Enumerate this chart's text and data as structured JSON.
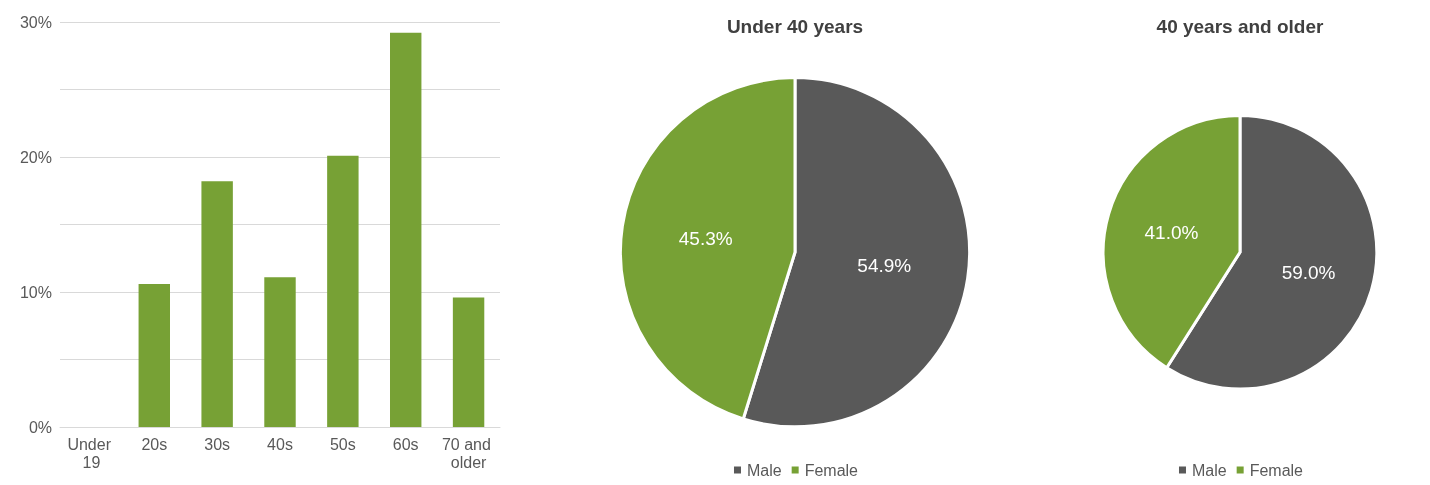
{
  "chart_data": [
    {
      "type": "bar",
      "categories": [
        "Under 19",
        "20s",
        "30s",
        "40s",
        "50s",
        "60s",
        "70 and older"
      ],
      "values": [
        0,
        10.6,
        18.2,
        11.1,
        20.1,
        29.2,
        9.6
      ],
      "color": "#77a135",
      "ylim": [
        0,
        30
      ],
      "yticks": [
        {
          "value": 0,
          "label": "0%"
        },
        {
          "value": 10,
          "label": "10%"
        },
        {
          "value": 20,
          "label": "20%"
        },
        {
          "value": 30,
          "label": "30%"
        }
      ],
      "grid": "y",
      "legend": false
    },
    {
      "type": "pie",
      "title": "Under 40 years",
      "categories": [
        "Male",
        "Female"
      ],
      "values": [
        54.9,
        45.3
      ],
      "colors": [
        "#595959",
        "#77a135"
      ],
      "value_labels": [
        "54.9%",
        "45.3%"
      ],
      "legend": "bottom"
    },
    {
      "type": "pie",
      "title": "40 years and older",
      "categories": [
        "Male",
        "Female"
      ],
      "values": [
        59.0,
        41.0
      ],
      "colors": [
        "#595959",
        "#77a135"
      ],
      "value_labels": [
        "59.0%",
        "41.0%"
      ],
      "legend": "bottom"
    }
  ]
}
